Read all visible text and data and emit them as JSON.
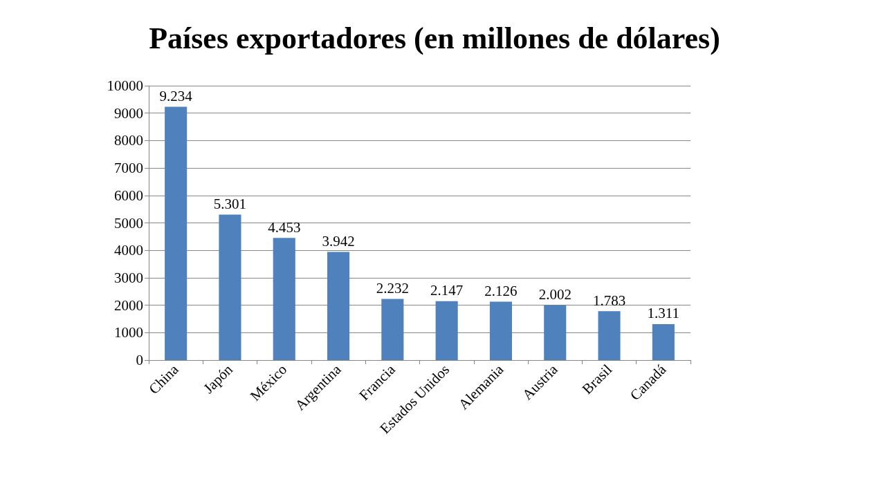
{
  "chart_data": {
    "type": "bar",
    "title": "Países exportadores (en millones de dólares)",
    "categories": [
      "China",
      "Japón",
      "México",
      "Argentina",
      "Francia",
      "Estados Unidos",
      "Alemania",
      "Austria",
      "Brasil",
      "Canadá"
    ],
    "values": [
      9234,
      5301,
      4453,
      3942,
      2232,
      2147,
      2126,
      2002,
      1783,
      1311
    ],
    "value_labels": [
      "9.234",
      "5.301",
      "4.453",
      "3.942",
      "2.232",
      "2.147",
      "2.126",
      "2.002",
      "1.783",
      "1.311"
    ],
    "color": "#4f81bd",
    "ylim": [
      0,
      10000
    ],
    "yticks": [
      0,
      1000,
      2000,
      3000,
      4000,
      5000,
      6000,
      7000,
      8000,
      9000,
      10000
    ],
    "grid": "y"
  }
}
